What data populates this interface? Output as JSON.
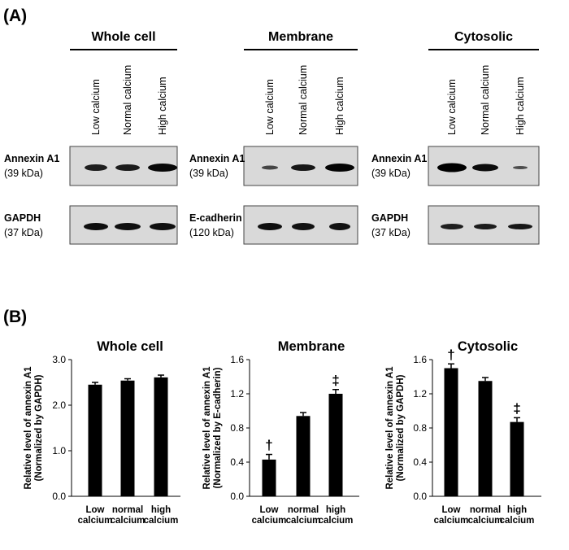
{
  "panel_a": {
    "label": "(A)",
    "groups": [
      {
        "title": "Whole cell",
        "lanes": [
          "Low calcium",
          "Normal calcium",
          "High calcium"
        ],
        "blots": [
          {
            "name": "Annexin A1",
            "size": "(39 kDa)"
          },
          {
            "name": "GAPDH",
            "size": "(37 kDa)"
          }
        ]
      },
      {
        "title": "Membrane",
        "lanes": [
          "Low calcium",
          "Normal calcium",
          "High calcium"
        ],
        "blots": [
          {
            "name": "Annexin A1",
            "size": "(39 kDa)"
          },
          {
            "name": "E-cadherin",
            "size": "(120 kDa)"
          }
        ]
      },
      {
        "title": "Cytosolic",
        "lanes": [
          "Low calcium",
          "Normal calcium",
          "High calcium"
        ],
        "blots": [
          {
            "name": "Annexin A1",
            "size": "(39 kDa)"
          },
          {
            "name": "GAPDH",
            "size": "(37 kDa)"
          }
        ]
      }
    ]
  },
  "panel_b": {
    "label": "(B)"
  },
  "chart_data": [
    {
      "type": "bar",
      "title": "Whole cell",
      "ylabel": "Relative level of annexin A1",
      "ylabel_note": "(Normalized by GAPDH)",
      "categories": [
        "Low calcium",
        "normal calcium",
        "high calcium"
      ],
      "values": [
        2.45,
        2.54,
        2.61
      ],
      "errors": [
        0.05,
        0.04,
        0.05
      ],
      "color": "#000000",
      "ylim": [
        0,
        3
      ],
      "yticks": [
        {
          "value": 0,
          "label": "0.0"
        },
        {
          "value": 1,
          "label": "1.0"
        },
        {
          "value": 2,
          "label": "2.0"
        },
        {
          "value": 3,
          "label": "3.0"
        }
      ]
    },
    {
      "type": "bar",
      "title": "Membrane",
      "ylabel": "Relative level of annexin A1",
      "ylabel_note": "(Normalized by E-cadherin)",
      "categories": [
        "Low calcium",
        "normal calcium",
        "high calcium"
      ],
      "values": [
        0.43,
        0.94,
        1.2
      ],
      "errors": [
        0.06,
        0.04,
        0.05
      ],
      "color": "#000000",
      "significance": [
        "†",
        null,
        "‡"
      ],
      "ylim": [
        0,
        1.6
      ],
      "yticks": [
        {
          "value": 0,
          "label": "0.0"
        },
        0.4,
        0.8,
        1.2,
        1.6
      ]
    },
    {
      "type": "bar",
      "title": "Cytosolic",
      "ylabel": "Relative level of annexin A1",
      "ylabel_note": "(Normalized by GAPDH)",
      "categories": [
        "Low calcium",
        "normal calcium",
        "high calcium"
      ],
      "values": [
        1.5,
        1.35,
        0.87
      ],
      "errors": [
        0.05,
        0.04,
        0.05
      ],
      "color": "#000000",
      "significance": [
        "†",
        null,
        "‡"
      ],
      "ylim": [
        0,
        1.6
      ],
      "yticks": [
        {
          "value": 0,
          "label": "0.0"
        },
        0.4,
        0.8,
        1.2,
        1.6
      ]
    }
  ]
}
